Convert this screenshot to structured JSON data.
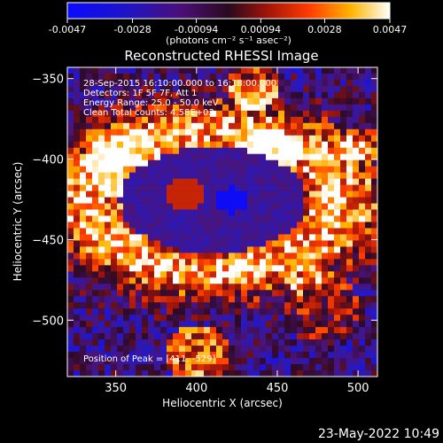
{
  "chart_data": {
    "type": "heatmap",
    "title": "Reconstructed RHESSI Image",
    "xlabel": "Heliocentric X (arcsec)",
    "ylabel": "Heliocentric Y (arcsec)",
    "xlim": [
      320,
      512
    ],
    "ylim": [
      -535,
      -343
    ],
    "x_ticks": [
      350,
      400,
      450,
      500
    ],
    "y_ticks": [
      -350,
      -400,
      -450,
      -500
    ],
    "colorbar": {
      "range": [
        -0.0047,
        0.0047
      ],
      "tick_values": [
        -0.0047,
        -0.0028,
        -0.00094,
        0.00094,
        0.0028,
        0.0047
      ],
      "tick_labels": [
        "-0.0047",
        "-0.0028",
        "-0.00094",
        "0.00094",
        "0.0028",
        "0.0047"
      ],
      "units_label": "(photons cm⁻² s⁻¹ asec⁻²)"
    },
    "annotations": {
      "time_range": "28-Sep-2015 16:10:00.000 to 16:18:00.000",
      "detectors": "Detectors: 1F 5F 7F, Att 1",
      "energy": "Energy Range: 25.0 - 50.0 keV",
      "method": "Clean    Total counts: 4.58E+03",
      "peak": "Position of Peak = [411, -529]"
    },
    "grid": false,
    "legend": "none"
  },
  "footer": {
    "timestamp": "23-May-2022 10:49"
  }
}
